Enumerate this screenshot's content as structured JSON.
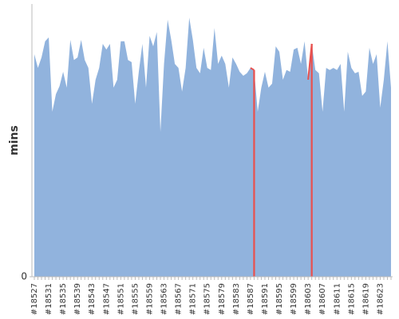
{
  "chart_data": {
    "type": "area",
    "y_label": "mins",
    "categories": [
      "#18527",
      null,
      null,
      null,
      "#18531",
      null,
      null,
      null,
      "#18535",
      null,
      null,
      null,
      "#18539",
      null,
      null,
      null,
      "#18543",
      null,
      null,
      null,
      "#18547",
      null,
      null,
      null,
      "#18551",
      null,
      null,
      null,
      "#18555",
      null,
      null,
      null,
      "#18559",
      null,
      null,
      null,
      "#18563",
      null,
      null,
      null,
      "#18567",
      null,
      null,
      null,
      "#18571",
      null,
      null,
      null,
      "#18575",
      null,
      null,
      null,
      "#18579",
      null,
      null,
      null,
      "#18583",
      null,
      null,
      null,
      "#18587",
      null,
      null,
      null,
      "#18591",
      null,
      null,
      null,
      "#18595",
      null,
      null,
      null,
      "#18599",
      null,
      null,
      null,
      "#18603",
      null,
      null,
      null,
      "#18607",
      null,
      null,
      null,
      "#18611",
      null,
      null,
      null,
      "#18615",
      null,
      null,
      null,
      "#18619",
      null,
      null,
      null,
      "#18623",
      null,
      null,
      null
    ],
    "series": [
      {
        "color": "#91b3dd",
        "values": [
          62,
          58.2,
          61.1,
          65.6,
          66.7,
          46,
          50.9,
          53.1,
          57.1,
          52.7,
          66,
          60.4,
          61.1,
          66,
          60.4,
          58.2,
          48.2,
          54.9,
          58.2,
          64.9,
          63.3,
          64.9,
          52.7,
          54.9,
          65.6,
          65.6,
          60.4,
          59.8,
          48.2,
          57.1,
          64.9,
          52.7,
          67.1,
          64.2,
          68.2,
          40.4,
          59.3,
          71.6,
          66,
          59.3,
          58.2,
          51.6,
          58.2,
          72.2,
          66,
          58.2,
          56.7,
          63.8,
          58.2,
          57.6,
          69.3,
          59.3,
          61.6,
          59.3,
          52.7,
          61.1,
          59.3,
          57.1,
          56,
          56.7,
          58.2,
          57.6,
          46,
          52.7,
          57.1,
          52.7,
          53.8,
          64.2,
          62.7,
          54.9,
          57.6,
          57.1,
          63.3,
          63.8,
          59.3,
          65.6,
          54.9,
          64.9,
          57.6,
          56.7,
          46,
          58.2,
          57.6,
          58.2,
          57.6,
          59.3,
          46,
          62.7,
          58.2,
          56.7,
          57.1,
          50.4,
          51.6,
          63.8,
          59.3,
          62,
          47.1,
          54.9,
          65.6,
          52.7
        ],
        "point_colors": [
          "#91b3dd",
          "#91b3dd",
          "#91b3dd",
          "#91b3dd",
          "#91b3dd",
          "#91b3dd",
          "#91b3dd",
          "#91b3dd",
          "#91b3dd",
          "#91b3dd",
          "#91b3dd",
          "#91b3dd",
          "#91b3dd",
          "#91b3dd",
          "#91b3dd",
          "#91b3dd",
          "#91b3dd",
          "#91b3dd",
          "#91b3dd",
          "#91b3dd",
          "#91b3dd",
          "#91b3dd",
          "#91b3dd",
          "#91b3dd",
          "#91b3dd",
          "#91b3dd",
          "#91b3dd",
          "#91b3dd",
          "#91b3dd",
          "#91b3dd",
          "#91b3dd",
          "#91b3dd",
          "#91b3dd",
          "#91b3dd",
          "#91b3dd",
          "#91b3dd",
          "#91b3dd",
          "#91b3dd",
          "#91b3dd",
          "#91b3dd",
          "#91b3dd",
          "#91b3dd",
          "#91b3dd",
          "#91b3dd",
          "#91b3dd",
          "#91b3dd",
          "#91b3dd",
          "#91b3dd",
          "#91b3dd",
          "#91b3dd",
          "#91b3dd",
          "#91b3dd",
          "#91b3dd",
          "#91b3dd",
          "#91b3dd",
          "#91b3dd",
          "#91b3dd",
          "#91b3dd",
          "#91b3dd",
          "#91b3dd",
          "#91b3dd",
          "#e8514f",
          "#91b3dd",
          "#91b3dd",
          "#91b3dd",
          "#91b3dd",
          "#91b3dd",
          "#91b3dd",
          "#91b3dd",
          "#91b3dd",
          "#91b3dd",
          "#91b3dd",
          "#91b3dd",
          "#91b3dd",
          "#91b3dd",
          "#91b3dd",
          "#91b3dd",
          "#e8514f",
          "#91b3dd",
          "#91b3dd",
          "#91b3dd",
          "#91b3dd",
          "#91b3dd",
          "#91b3dd",
          "#91b3dd",
          "#91b3dd",
          "#91b3dd",
          "#91b3dd",
          "#91b3dd",
          "#91b3dd",
          "#91b3dd",
          "#91b3dd",
          "#91b3dd",
          "#91b3dd",
          "#91b3dd",
          "#91b3dd",
          "#91b3dd",
          "#91b3dd",
          "#91b3dd",
          "#91b3dd"
        ]
      }
    ],
    "ylim": [
      0,
      76
    ],
    "yticks": [
      0
    ]
  }
}
